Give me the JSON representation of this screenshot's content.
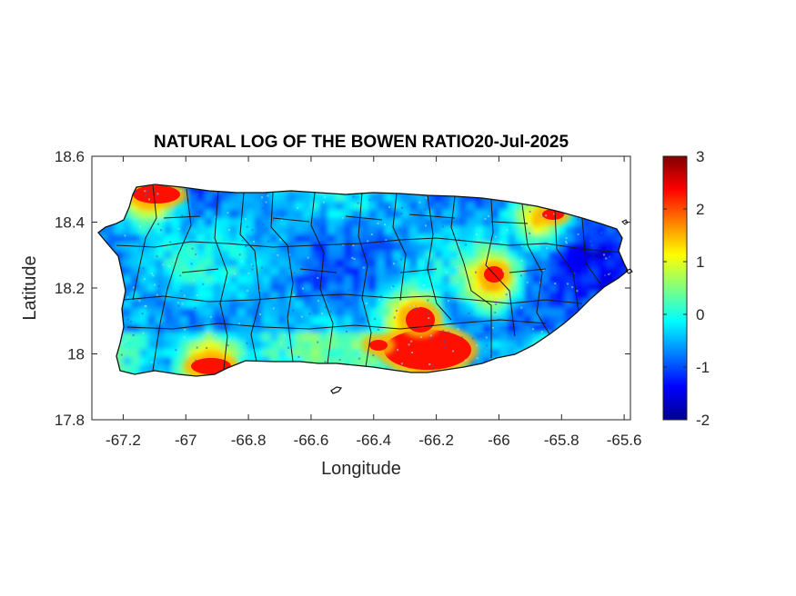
{
  "chart_data": {
    "type": "heatmap",
    "title": "NATURAL LOG OF THE BOWEN RATIO20-Jul-2025",
    "xlabel": "Longitude",
    "ylabel": "Latitude",
    "xlim": [
      -67.3,
      -65.58
    ],
    "ylim": [
      17.8,
      18.6
    ],
    "xticks": [
      "-67.2",
      "-67",
      "-66.8",
      "-66.6",
      "-66.4",
      "-66.2",
      "-66",
      "-65.8",
      "-65.6"
    ],
    "xtick_values": [
      -67.2,
      -67.0,
      -66.8,
      -66.6,
      -66.4,
      -66.2,
      -66.0,
      -65.8,
      -65.6
    ],
    "yticks": [
      "18.6",
      "18.4",
      "18.2",
      "18"
    ],
    "ytick_values": [
      18.6,
      18.4,
      18.2,
      18.0
    ],
    "ytick_bottom": "17.8",
    "colormap": "jet",
    "colorbar": {
      "limits": [
        -2,
        3
      ],
      "ticks": [
        "3",
        "2",
        "1",
        "0",
        "-1",
        "-2"
      ],
      "tick_values": [
        3,
        2,
        1,
        0,
        -1,
        -2
      ]
    },
    "region": "Puerto Rico",
    "hotspots": [
      {
        "lon": -67.12,
        "lat": 18.48,
        "value": 2.5
      },
      {
        "lon": -66.92,
        "lat": 17.97,
        "value": 2.4
      },
      {
        "lon": -66.22,
        "lat": 17.99,
        "value": 2.6
      },
      {
        "lon": -66.02,
        "lat": 18.22,
        "value": 2.1
      },
      {
        "lon": -65.87,
        "lat": 18.41,
        "value": 2.0
      },
      {
        "lon": -66.28,
        "lat": 18.11,
        "value": 2.2
      }
    ]
  }
}
